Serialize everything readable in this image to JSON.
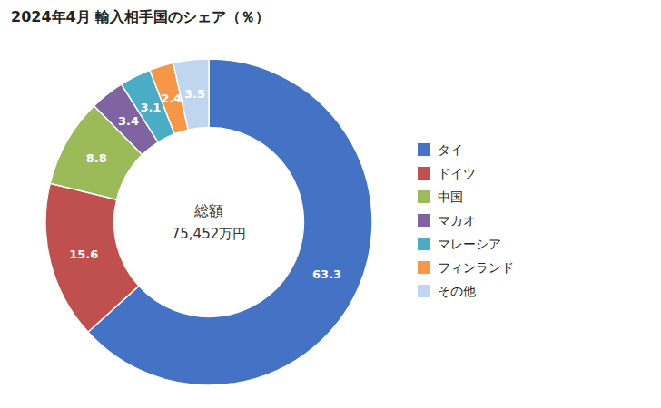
{
  "chart_data": {
    "type": "donut",
    "title": "2024年4月 輸入相手国のシェア（％）",
    "annotations": [
      "総額",
      "75,452万円"
    ],
    "categories": [
      "タイ",
      "ドイツ",
      "中国",
      "マカオ",
      "マレーシア",
      "フィンランド",
      "その他"
    ],
    "values": [
      63.3,
      15.6,
      8.8,
      3.4,
      3.1,
      2.4,
      3.5
    ],
    "colors": [
      "#4472C4",
      "#C0504D",
      "#9BBB59",
      "#8064A2",
      "#4BACC6",
      "#F79646",
      "#C0D5F0"
    ],
    "data_labels": true,
    "legend": "right"
  }
}
